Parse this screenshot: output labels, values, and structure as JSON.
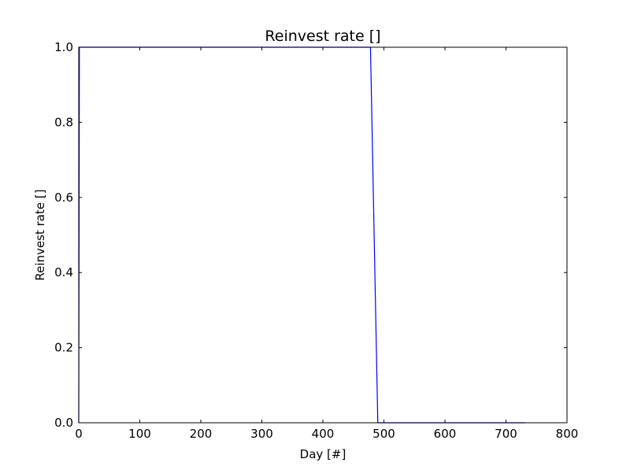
{
  "chart_data": {
    "type": "line",
    "title": "Reinvest rate []",
    "xlabel": "Day [#]",
    "ylabel": "Reinvest rate []",
    "xlim": [
      0,
      800
    ],
    "ylim": [
      0,
      1
    ],
    "xticks": [
      0,
      100,
      200,
      300,
      400,
      500,
      600,
      700,
      800
    ],
    "xtick_labels": [
      "0",
      "100",
      "200",
      "300",
      "400",
      "500",
      "600",
      "700",
      "800"
    ],
    "yticks": [
      0,
      0.2,
      0.4,
      0.6,
      0.8,
      1
    ],
    "ytick_labels": [
      "0.0",
      "0.2",
      "0.4",
      "0.6",
      "0.8",
      "1.0"
    ],
    "grid": false,
    "series": [
      {
        "color": "#0000ff",
        "x": [
          0,
          1,
          478,
          490,
          731
        ],
        "y": [
          0,
          1,
          1,
          0,
          0
        ]
      }
    ]
  }
}
